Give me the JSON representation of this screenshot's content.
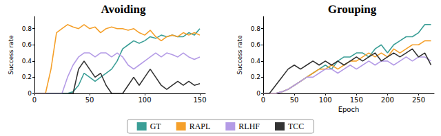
{
  "chart_data": [
    {
      "type": "line",
      "title": "Avoiding",
      "ylabel": "Success rate",
      "xlim": [
        0,
        155
      ],
      "xticks": [
        0,
        50,
        100,
        150
      ],
      "ylim": [
        0,
        0.95
      ],
      "yticks": [
        0,
        0.2,
        0.4,
        0.6,
        0.8
      ],
      "grid": false,
      "legend": "bottom",
      "x": [
        0,
        5,
        10,
        15,
        20,
        25,
        30,
        35,
        40,
        45,
        50,
        55,
        60,
        65,
        70,
        75,
        80,
        85,
        90,
        95,
        100,
        105,
        110,
        115,
        120,
        125,
        130,
        135,
        140,
        145,
        150
      ],
      "series": [
        {
          "name": "GT",
          "color": "#3a9e96",
          "values": [
            0,
            0,
            0,
            0,
            0,
            0,
            0,
            0.02,
            0.1,
            0.25,
            0.2,
            0.15,
            0.2,
            0.25,
            0.3,
            0.4,
            0.55,
            0.6,
            0.65,
            0.62,
            0.65,
            0.7,
            0.68,
            0.72,
            0.7,
            0.72,
            0.7,
            0.7,
            0.75,
            0.72,
            0.8
          ]
        },
        {
          "name": "RAPL",
          "color": "#f5a02a",
          "values": [
            0,
            0,
            0,
            0.3,
            0.75,
            0.8,
            0.85,
            0.82,
            0.8,
            0.85,
            0.8,
            0.82,
            0.75,
            0.8,
            0.82,
            0.8,
            0.8,
            0.78,
            0.8,
            0.75,
            0.72,
            0.78,
            0.7,
            0.65,
            0.7,
            0.72,
            0.7,
            0.75,
            0.72,
            0.75,
            0.72
          ]
        },
        {
          "name": "RLHF",
          "color": "#b49be6",
          "values": [
            0,
            0,
            0,
            0,
            0,
            0,
            0.2,
            0.35,
            0.45,
            0.5,
            0.5,
            0.45,
            0.5,
            0.5,
            0.45,
            0.5,
            0.45,
            0.35,
            0.3,
            0.35,
            0.4,
            0.45,
            0.5,
            0.45,
            0.5,
            0.48,
            0.45,
            0.5,
            0.45,
            0.42,
            0.45
          ]
        },
        {
          "name": "TCC",
          "color": "#333333",
          "values": [
            0,
            0,
            0,
            0,
            0,
            0,
            0,
            0,
            0.3,
            0.4,
            0.3,
            0.2,
            0.25,
            0.1,
            0,
            0,
            0,
            0.1,
            0.2,
            0.1,
            0.2,
            0.3,
            0.2,
            0.1,
            0.05,
            0.1,
            0.15,
            0.1,
            0.15,
            0.1,
            0.12
          ]
        }
      ]
    },
    {
      "type": "line",
      "title": "Grouping",
      "ylabel": "Success rate",
      "xlabel": "Epoch",
      "xlim": [
        0,
        275
      ],
      "xticks": [
        0,
        50,
        100,
        150,
        200,
        250
      ],
      "ylim": [
        0,
        0.95
      ],
      "yticks": [
        0,
        0.2,
        0.4,
        0.6,
        0.8
      ],
      "grid": false,
      "x": [
        0,
        10,
        20,
        30,
        40,
        50,
        60,
        70,
        80,
        90,
        100,
        110,
        120,
        130,
        140,
        150,
        160,
        170,
        180,
        190,
        200,
        210,
        220,
        230,
        240,
        250,
        260,
        270
      ],
      "series": [
        {
          "name": "GT",
          "color": "#3a9e96",
          "values": [
            0,
            0,
            0,
            0.02,
            0.05,
            0.1,
            0.15,
            0.2,
            0.25,
            0.3,
            0.35,
            0.3,
            0.4,
            0.45,
            0.45,
            0.5,
            0.5,
            0.45,
            0.55,
            0.6,
            0.5,
            0.6,
            0.65,
            0.7,
            0.7,
            0.75,
            0.85,
            0.85
          ]
        },
        {
          "name": "RAPL",
          "color": "#f5a02a",
          "values": [
            0,
            0,
            0,
            0.02,
            0.05,
            0.1,
            0.15,
            0.2,
            0.25,
            0.3,
            0.3,
            0.35,
            0.3,
            0.35,
            0.4,
            0.4,
            0.45,
            0.5,
            0.45,
            0.5,
            0.45,
            0.55,
            0.5,
            0.55,
            0.6,
            0.6,
            0.65,
            0.65
          ]
        },
        {
          "name": "RLHF",
          "color": "#b49be6",
          "values": [
            0,
            0,
            0,
            0.02,
            0.05,
            0.1,
            0.15,
            0.2,
            0.2,
            0.25,
            0.3,
            0.3,
            0.25,
            0.3,
            0.35,
            0.3,
            0.35,
            0.4,
            0.35,
            0.4,
            0.4,
            0.35,
            0.4,
            0.45,
            0.4,
            0.45,
            0.45,
            0.4
          ]
        },
        {
          "name": "TCC",
          "color": "#333333",
          "values": [
            0,
            0,
            0.1,
            0.2,
            0.3,
            0.35,
            0.3,
            0.35,
            0.4,
            0.35,
            0.4,
            0.35,
            0.4,
            0.35,
            0.4,
            0.45,
            0.4,
            0.45,
            0.5,
            0.4,
            0.45,
            0.5,
            0.45,
            0.5,
            0.55,
            0.45,
            0.5,
            0.35
          ]
        }
      ]
    }
  ]
}
